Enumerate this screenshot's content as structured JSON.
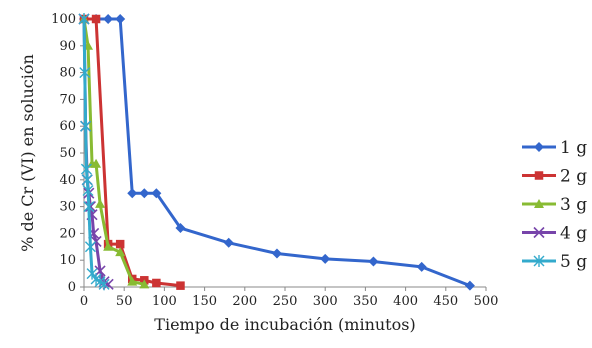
{
  "chart_data": {
    "type": "line",
    "title": "",
    "xlabel": "Tiempo de incubación (minutos)",
    "ylabel": "% de Cr (VI) en solución",
    "xlim": [
      0,
      500
    ],
    "ylim": [
      0,
      100
    ],
    "xticks": [
      0,
      50,
      100,
      150,
      200,
      250,
      300,
      350,
      400,
      450,
      500
    ],
    "yticks": [
      0,
      10,
      20,
      30,
      40,
      50,
      60,
      70,
      80,
      90,
      100
    ],
    "xtick_labels": [
      "0",
      "50",
      "100",
      "150",
      "200",
      "250",
      "300",
      "350",
      "400",
      "450",
      "500"
    ],
    "ytick_labels": [
      "0",
      "10",
      "20",
      "30",
      "40",
      "50",
      "60",
      "70",
      "80",
      "90",
      "100"
    ],
    "grid": false,
    "legend": "right",
    "series": [
      {
        "name": "1 g",
        "color": "#3366cc",
        "marker": "diamond",
        "x": [
          0,
          15,
          30,
          45,
          60,
          75,
          90,
          120,
          180,
          240,
          300,
          360,
          420,
          480
        ],
        "y": [
          100,
          100,
          100,
          100,
          35,
          35,
          35,
          22,
          16.5,
          12.5,
          10.5,
          9.5,
          7.5,
          0.5
        ]
      },
      {
        "name": "2 g",
        "color": "#cc3333",
        "marker": "square",
        "x": [
          0,
          15,
          30,
          45,
          60,
          75,
          90,
          120
        ],
        "y": [
          100,
          100,
          16,
          16,
          3,
          2.5,
          1.5,
          0.5
        ]
      },
      {
        "name": "3 g",
        "color": "#88bb33",
        "marker": "triangle",
        "x": [
          0,
          5,
          10,
          15,
          20,
          30,
          45,
          60,
          75
        ],
        "y": [
          100,
          90,
          46,
          46,
          31,
          15,
          13,
          2,
          1
        ]
      },
      {
        "name": "4 g",
        "color": "#7744aa",
        "marker": "x",
        "x": [
          0,
          2,
          4,
          6,
          8,
          10,
          12,
          15,
          20,
          25,
          30
        ],
        "y": [
          100,
          60,
          40,
          35,
          30,
          27,
          20,
          17,
          6,
          2,
          1
        ]
      },
      {
        "name": "5 g",
        "color": "#33aacc",
        "marker": "star",
        "x": [
          0,
          1,
          2,
          3,
          4,
          5,
          6,
          8,
          10,
          15,
          20,
          25
        ],
        "y": [
          100,
          80,
          60,
          44,
          40,
          36,
          30,
          15,
          5,
          3,
          2,
          1
        ]
      }
    ]
  }
}
